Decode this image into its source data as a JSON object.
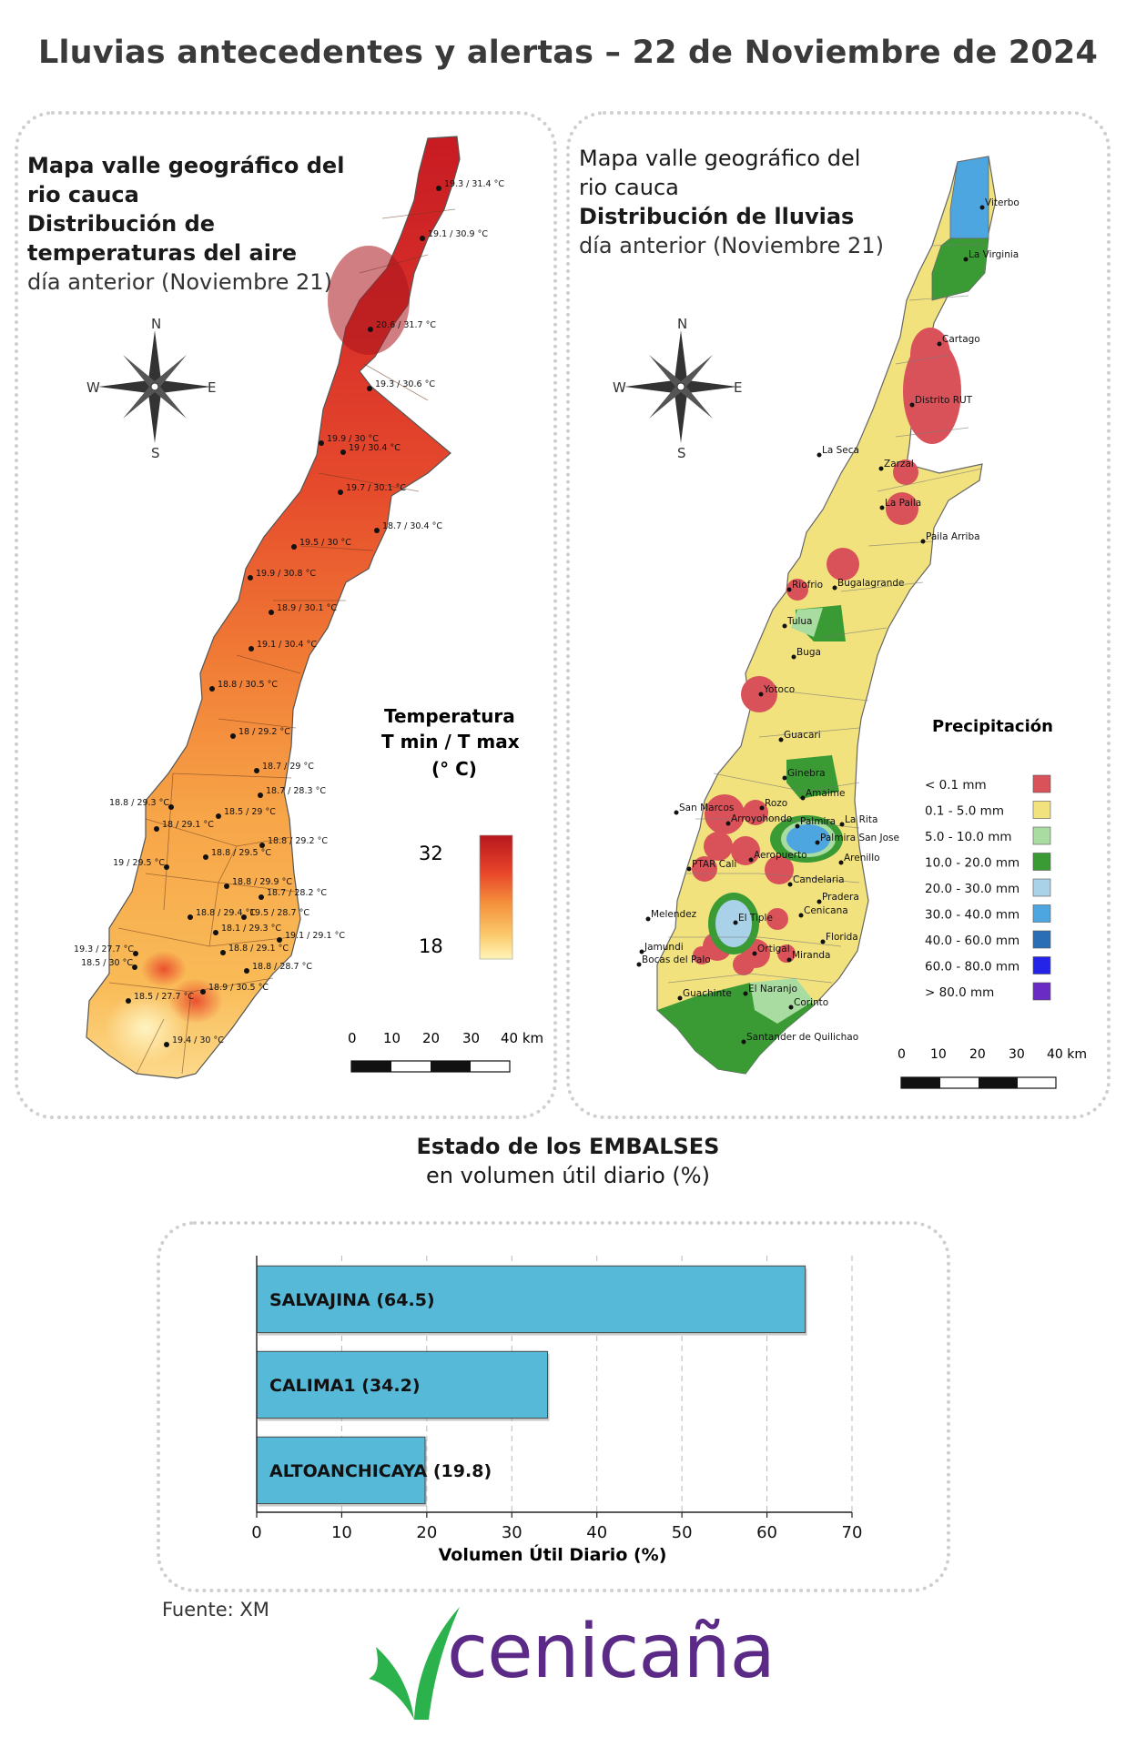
{
  "header": {
    "title": "Lluvias antecedentes y alertas – 22 de Noviembre de 2024"
  },
  "left_map": {
    "title_lines": [
      "Mapa valle geográfico del",
      "rio cauca",
      "Distribución de",
      "temperaturas del aire"
    ],
    "subtitle": "día anterior (Noviembre 21)",
    "compass": {
      "n": "N",
      "s": "S",
      "e": "E",
      "w": "W"
    },
    "legend": {
      "title_lines": [
        "Temperatura",
        "T min / T max",
        "(° C)"
      ],
      "max": "32",
      "min": "18",
      "colors": [
        "#b7171e",
        "#e8452a",
        "#f4913c",
        "#fbc86a",
        "#fff5b8"
      ]
    },
    "scale": {
      "labels": [
        "0",
        "10",
        "20",
        "30",
        "40 km"
      ]
    },
    "stations": [
      "19.3 / 31.4 °C",
      "19.1 / 30.9 °C",
      "20.6 / 31.7 °C",
      "19.3 / 30.6 °C",
      "19.9 / 30 °C",
      "19 / 30.4 °C",
      "19.7 / 30.1 °C",
      "18.7 / 30.4 °C",
      "19.5 / 30 °C",
      "19.9 / 30.8 °C",
      "18.9 / 30.1 °C",
      "19.1 / 30.4 °C",
      "18.8 / 30.5 °C",
      "18 / 29.2 °C",
      "18.7 / 29 °C",
      "18.7 / 28.3 °C",
      "18.8 / 29.3 °C",
      "18.5 / 29 °C",
      "18 / 29.1 °C",
      "18.8 / 29.2 °C",
      "19 / 29.5 °C",
      "18.8 / 29.5 °C",
      "18.8 / 29.9 °C",
      "18.7 / 28.2 °C",
      "18.8 / 29.4 °C",
      "19.5 / 28.7 °C",
      "18.1 / 29.3 °C",
      "19.1 / 29.1 °C",
      "19.3 / 27.7 °C",
      "18.8 / 29.1 °C",
      "18.5 / 30 °C",
      "18.8 / 28.7 °C",
      "18.9 / 30.5 °C",
      "18.5 / 27.7 °C",
      "19.4 / 30 °C"
    ]
  },
  "right_map": {
    "title_lines": [
      "Mapa valle geográfico del",
      "rio cauca"
    ],
    "title_bold": "Distribución de lluvias",
    "subtitle": "día anterior (Noviembre 21)",
    "compass": {
      "n": "N",
      "s": "S",
      "e": "E",
      "w": "W"
    },
    "legend": {
      "title": "Precipitación",
      "items": [
        {
          "label": "< 0.1 mm",
          "color": "#d9525a"
        },
        {
          "label": "0.1 - 5.0 mm",
          "color": "#f2e27e"
        },
        {
          "label": "5.0 - 10.0 mm",
          "color": "#a9dca0"
        },
        {
          "label": "10.0 - 20.0 mm",
          "color": "#3a9b35"
        },
        {
          "label": "20.0 - 30.0 mm",
          "color": "#a9d2e8"
        },
        {
          "label": "30.0 - 40.0 mm",
          "color": "#4ea6e0"
        },
        {
          "label": "40.0 - 60.0 mm",
          "color": "#2a6fb5"
        },
        {
          "label": "60.0 - 80.0 mm",
          "color": "#2424e8"
        },
        {
          "label": "> 80.0 mm",
          "color": "#6a2bc4"
        }
      ]
    },
    "scale": {
      "labels": [
        "0",
        "10",
        "20",
        "30",
        "40 km"
      ]
    },
    "places": [
      "Viterbo",
      "La Virginia",
      "Cartago",
      "Distrito RUT",
      "La Seca",
      "Zarzal",
      "La Paila",
      "Paila Arriba",
      "Bugalagrande",
      "Riofrio",
      "Tulua",
      "Buga",
      "Yotoco",
      "Guacari",
      "Ginebra",
      "Amaime",
      "San Marcos",
      "Rozo",
      "La Rita",
      "Palmira",
      "Palmira San Jose",
      "Arroyohondo",
      "Aeropuerto",
      "Arenillo",
      "PTAR Cali",
      "Candelaria",
      "Pradera",
      "Melendez",
      "El Tiple",
      "Cenicana",
      "Florida",
      "Jamundi",
      "Bocas del Palo",
      "Ortigal",
      "Miranda",
      "Guachinte",
      "El Naranjo",
      "Corinto",
      "Santander de Quilichao"
    ]
  },
  "reservoirs": {
    "title": "Estado de los EMBALSES",
    "subtitle": "en volumen útil diario (%)"
  },
  "chart_data": {
    "type": "bar",
    "orientation": "horizontal",
    "categories": [
      "SALVAJINA (64.5)",
      "CALIMA1 (34.2)",
      "ALTOANCHICAYA (19.8)"
    ],
    "values": [
      64.5,
      34.2,
      19.8
    ],
    "xlabel": "Volumen Útil Diario (%)",
    "xlim": [
      0,
      70
    ],
    "xticks": [
      "0",
      "10",
      "20",
      "30",
      "40",
      "50",
      "60",
      "70"
    ],
    "bar_color": "#56b9d8",
    "grid": "vertical dashed"
  },
  "footer": {
    "source": "Fuente: XM",
    "brand": "cenicaña",
    "brand_color": "#5b2a86",
    "leaf_color": "#2bb24c"
  }
}
